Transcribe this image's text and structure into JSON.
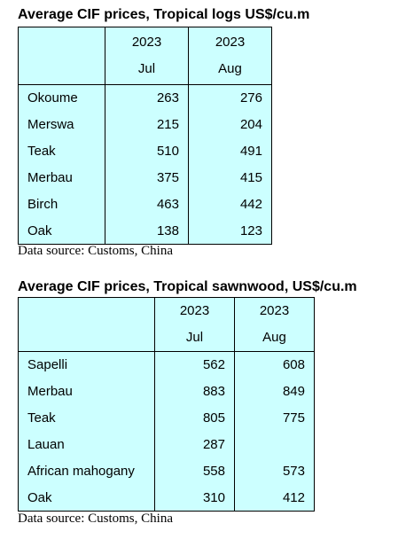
{
  "tables": [
    {
      "title": "Average CIF prices, Tropical logs US$/cu.m",
      "header": [
        [
          "2023",
          "Jul"
        ],
        [
          "2023",
          "Aug"
        ]
      ],
      "rows": [
        [
          "Okoume",
          263,
          276
        ],
        [
          "Merswa",
          215,
          204
        ],
        [
          "Teak",
          510,
          491
        ],
        [
          "Merbau",
          375,
          415
        ],
        [
          "Birch",
          463,
          442
        ],
        [
          "Oak",
          138,
          123
        ]
      ],
      "source": "Data source: Customs, China"
    },
    {
      "title": "Average CIF prices, Tropical sawnwood, US$/cu.m",
      "header": [
        [
          "2023",
          "Jul"
        ],
        [
          "2023",
          "Aug"
        ]
      ],
      "rows": [
        [
          "Sapelli",
          562,
          608
        ],
        [
          "Merbau",
          883,
          849
        ],
        [
          "Teak",
          805,
          775
        ],
        [
          "Lauan",
          287,
          null
        ],
        [
          "African mahogany",
          558,
          573
        ],
        [
          "Oak",
          310,
          412
        ]
      ],
      "source": "Data source: Customs, China"
    }
  ]
}
